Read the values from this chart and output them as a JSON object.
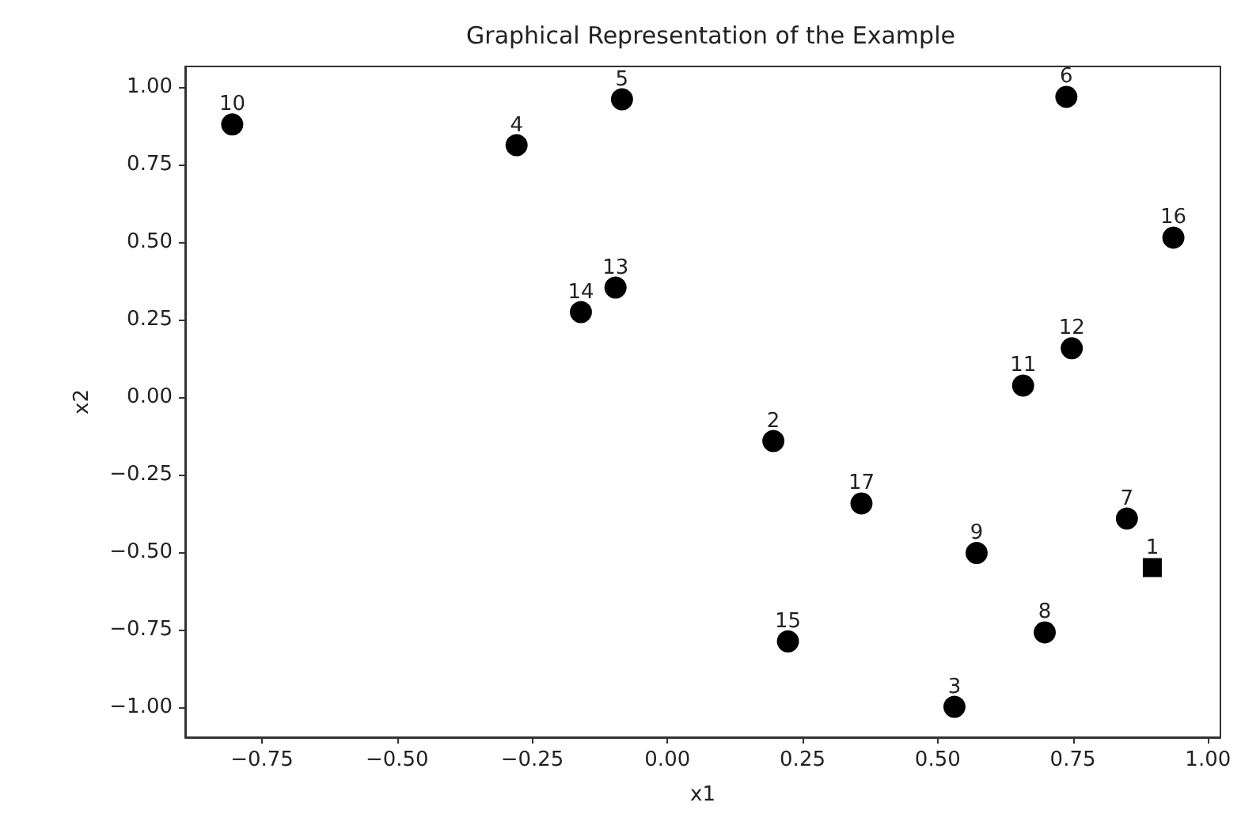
{
  "chart_data": {
    "type": "scatter",
    "title": "Graphical Representation of the Example",
    "xlabel": "x1",
    "ylabel": "x2",
    "xlim": [
      -0.892,
      1.023
    ],
    "ylim": [
      -1.097,
      1.066
    ],
    "xticks": [
      {
        "value": -0.75,
        "label": "−0.75"
      },
      {
        "value": -0.5,
        "label": "−0.50"
      },
      {
        "value": -0.25,
        "label": "−0.25"
      },
      {
        "value": 0,
        "label": "0.00"
      },
      {
        "value": 0.25,
        "label": "0.25"
      },
      {
        "value": 0.5,
        "label": "0.50"
      },
      {
        "value": 0.75,
        "label": "0.75"
      },
      {
        "value": 1,
        "label": "1.00"
      }
    ],
    "yticks": [
      {
        "value": -1,
        "label": "−1.00"
      },
      {
        "value": -0.75,
        "label": "−0.75"
      },
      {
        "value": -0.5,
        "label": "−0.50"
      },
      {
        "value": -0.25,
        "label": "−0.25"
      },
      {
        "value": 0,
        "label": "0.00"
      },
      {
        "value": 0.25,
        "label": "0.25"
      },
      {
        "value": 0.5,
        "label": "0.50"
      },
      {
        "value": 0.75,
        "label": "0.75"
      },
      {
        "value": 1,
        "label": "1.00"
      }
    ],
    "grid": false,
    "series": [
      {
        "color": "#000000",
        "marker": "square",
        "x": [
          0.897
        ],
        "values": [
          -0.55
        ]
      },
      {
        "color": "#000000",
        "marker": "circle",
        "x": [
          0.196,
          0.531,
          -0.279,
          -0.084,
          0.738,
          0.85,
          0.698,
          0.572,
          -0.805,
          0.658,
          0.748,
          -0.096,
          -0.16,
          0.223,
          0.936,
          0.359
        ],
        "values": [
          -0.142,
          -0.999,
          0.812,
          0.96,
          0.968,
          -0.392,
          -0.759,
          -0.503,
          0.879,
          0.037,
          0.157,
          0.353,
          0.274,
          -0.788,
          0.514,
          -0.343
        ]
      }
    ],
    "annotations": [
      {
        "text": "1",
        "x": 0.897,
        "y": -0.55
      },
      {
        "text": "2",
        "x": 0.196,
        "y": -0.142
      },
      {
        "text": "3",
        "x": 0.531,
        "y": -0.999
      },
      {
        "text": "4",
        "x": -0.279,
        "y": 0.812
      },
      {
        "text": "5",
        "x": -0.084,
        "y": 0.96
      },
      {
        "text": "6",
        "x": 0.738,
        "y": 0.968
      },
      {
        "text": "7",
        "x": 0.85,
        "y": -0.392
      },
      {
        "text": "8",
        "x": 0.698,
        "y": -0.759
      },
      {
        "text": "9",
        "x": 0.572,
        "y": -0.503
      },
      {
        "text": "10",
        "x": -0.805,
        "y": 0.879
      },
      {
        "text": "11",
        "x": 0.658,
        "y": 0.037
      },
      {
        "text": "12",
        "x": 0.748,
        "y": 0.157
      },
      {
        "text": "13",
        "x": -0.096,
        "y": 0.353
      },
      {
        "text": "14",
        "x": -0.16,
        "y": 0.274
      },
      {
        "text": "15",
        "x": 0.223,
        "y": -0.788
      },
      {
        "text": "16",
        "x": 0.936,
        "y": 0.514
      },
      {
        "text": "17",
        "x": 0.359,
        "y": -0.343
      }
    ]
  }
}
